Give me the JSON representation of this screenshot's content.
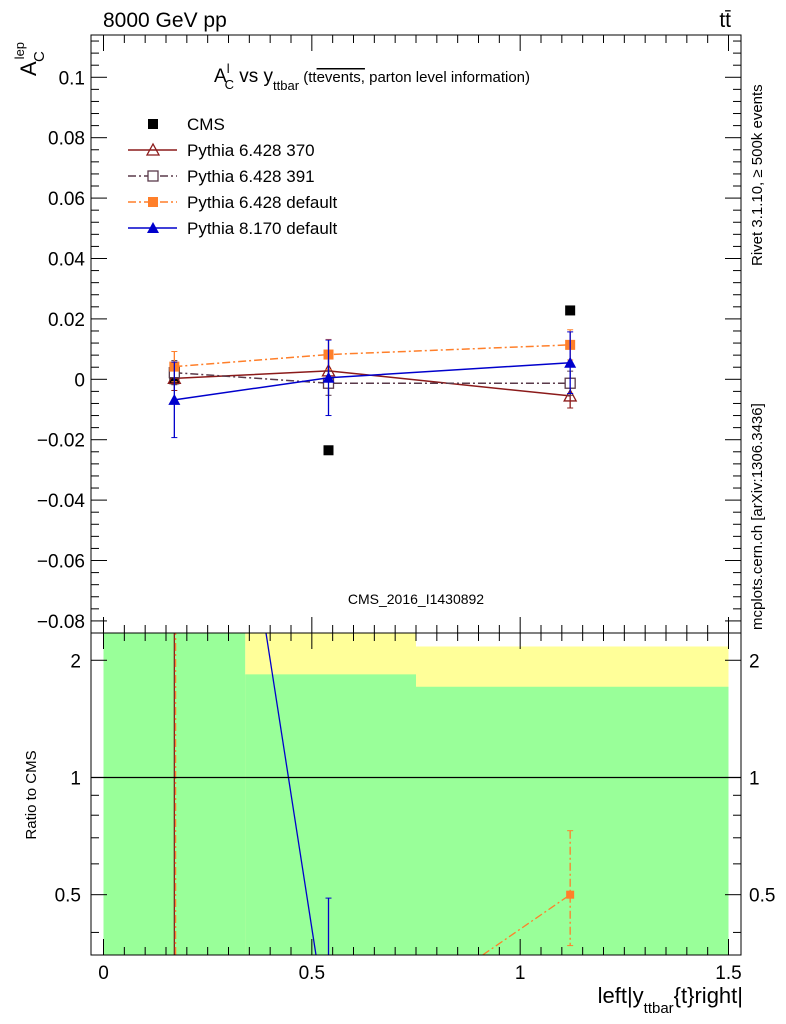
{
  "header": {
    "left": "8000 GeV pp",
    "right": "tt̄"
  },
  "side_labels": {
    "rivet": "Rivet 3.1.10, ≥ 500k events",
    "mcplots": "mcplots.cern.ch [arXiv:1306.3436]"
  },
  "chart_data": {
    "type": "scatter",
    "title_main": "A",
    "title_sup": "l",
    "title_sub": "C",
    "title_mid": " vs y",
    "title_sub2": "ttbar",
    "title_paren_open": " (t",
    "title_paren_t2": "t",
    "title_overline": "events,",
    "title_rest": " parton level information)",
    "ylabel_main": "A",
    "ylabel_sup": "lep",
    "ylabel_sub": "C",
    "xlabel_pre": "left|y",
    "xlabel_sub": "ttbar",
    "xlabel_post": "{t}right|",
    "watermark": "CMS_2016_I1430892",
    "xlim": [
      -0.03,
      1.53
    ],
    "ylim": [
      -0.084,
      0.114
    ],
    "y_ticks": [
      0.1,
      0.08,
      0.06,
      0.04,
      0.02,
      0,
      -0.02,
      -0.04,
      -0.06,
      -0.08
    ],
    "y_tick_labels": [
      "0.1",
      "0.08",
      "0.06",
      "0.04",
      "0.02",
      "0",
      "−0.02",
      "−0.04",
      "−0.06",
      "−0.08"
    ],
    "x_ticks": [
      0,
      0.5,
      1,
      1.5
    ],
    "x_tick_labels": [
      "0",
      "0.5",
      "1",
      "1.5"
    ],
    "series": [
      {
        "name": "CMS",
        "color": "#000000",
        "marker": "square-filled",
        "line": "none",
        "x": [
          0.17,
          0.54,
          1.12
        ],
        "y": [
          0.0,
          -0.0235,
          0.0228
        ],
        "yerr": [
          0,
          0,
          0
        ]
      },
      {
        "name": "Pythia 6.428 370",
        "color": "#8b1a1a",
        "marker": "triangle-open",
        "line": "solid",
        "x": [
          0.17,
          0.54,
          1.12
        ],
        "y": [
          0.0003,
          0.0028,
          -0.0055
        ],
        "yerr": [
          0.004,
          0.004,
          0.004
        ]
      },
      {
        "name": "Pythia 6.428 391",
        "color": "#5a3a4a",
        "marker": "square-open",
        "line": "dashdot",
        "x": [
          0.17,
          0.54,
          1.12
        ],
        "y": [
          0.0022,
          -0.0013,
          -0.0013
        ],
        "yerr": [
          0.004,
          0.004,
          0.004
        ]
      },
      {
        "name": "Pythia 6.428 default",
        "color": "#ff7f2a",
        "marker": "square-filled",
        "line": "dashdot",
        "x": [
          0.17,
          0.54,
          1.12
        ],
        "y": [
          0.0042,
          0.0082,
          0.0114
        ],
        "yerr": [
          0.005,
          0.005,
          0.005
        ]
      },
      {
        "name": "Pythia 8.170 default",
        "color": "#0000cc",
        "marker": "triangle-filled",
        "line": "solid",
        "x": [
          0.17,
          0.54,
          1.12
        ],
        "y": [
          -0.0068,
          0.0005,
          0.0055
        ],
        "yerr": [
          0.0125,
          0.0125,
          0.0102
        ]
      }
    ],
    "ratio": {
      "ylabel": "Ratio to CMS",
      "ylim": [
        0.35,
        2.35
      ],
      "y_ticks": [
        0.5,
        1,
        2
      ],
      "y_tick_labels": [
        "0.5",
        "1",
        "2"
      ],
      "bands": {
        "yellow": "#ffff99",
        "green": "#99ff99",
        "outer_segments": [
          {
            "x0": 0.0,
            "x1": 0.34,
            "lo": 0.35,
            "hi": 2.35
          },
          {
            "x0": 0.34,
            "x1": 0.75,
            "lo": 0.35,
            "hi": 2.35
          },
          {
            "x0": 0.75,
            "x1": 1.5,
            "lo": 0.35,
            "hi": 2.17
          }
        ],
        "inner_segments": [
          {
            "x0": 0.0,
            "x1": 0.34,
            "lo": 0.35,
            "hi": 2.35
          },
          {
            "x0": 0.34,
            "x1": 0.75,
            "lo": 0.35,
            "hi": 1.84
          },
          {
            "x0": 0.75,
            "x1": 1.5,
            "lo": 0.35,
            "hi": 1.71
          }
        ]
      },
      "lines": [
        {
          "series": "Pythia 6.428 370",
          "color": "#8b1a1a",
          "style": "solid",
          "x": [
            0.17,
            0.17
          ],
          "y": [
            0.35,
            2.35
          ]
        },
        {
          "series": "Pythia 6.428 391",
          "color": "#5a3a4a",
          "style": "dashdot",
          "x": [
            0.172,
            0.172
          ],
          "y": [
            0.35,
            2.35
          ]
        },
        {
          "series": "Pythia 6.428 default",
          "color": "#ff7f2a",
          "style": "dashdot",
          "x": [
            0.173,
            0.173
          ],
          "y": [
            0.35,
            2.35
          ]
        },
        {
          "series": "Pythia 8.170 default",
          "color": "#0000cc",
          "style": "solid",
          "x": [
            0.39,
            0.51
          ],
          "y": [
            2.35,
            0.35
          ]
        },
        {
          "series": "Pythia 6.428 default",
          "color": "#ff7f2a",
          "style": "dashdot",
          "x": [
            0.91,
            1.12
          ],
          "y": [
            0.35,
            0.5
          ]
        }
      ],
      "points": [
        {
          "series": "Pythia 8.170 default",
          "color": "#0000cc",
          "marker": "none",
          "x": 0.54,
          "y": 0.35,
          "err_hi": 0.49
        },
        {
          "series": "Pythia 6.428 default",
          "color": "#ff7f2a",
          "marker": "square-filled",
          "x": 1.12,
          "y": 0.5,
          "err_lo": 0.37,
          "err_hi": 0.73
        }
      ]
    }
  }
}
